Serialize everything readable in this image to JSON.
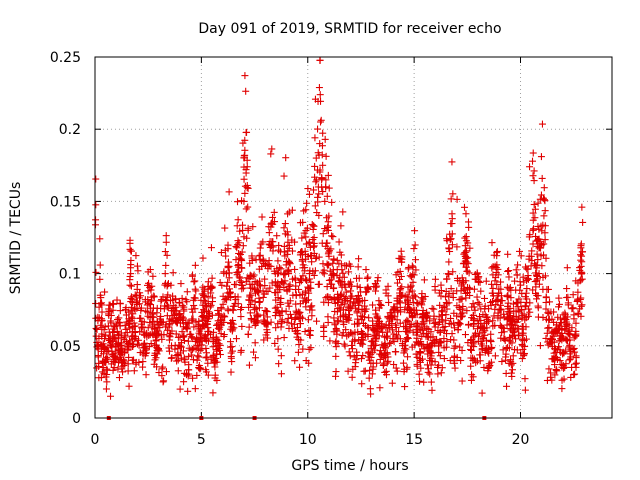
{
  "chart_data": {
    "type": "scatter",
    "title": "Day 091 of 2019, SRMTID for receiver echo",
    "xlabel": "GPS time / hours",
    "ylabel": "SRMTID / TECUs",
    "xlim": [
      0,
      24.3
    ],
    "ylim": [
      0,
      0.25
    ],
    "grid": true,
    "xticks": [
      0,
      5,
      10,
      15,
      20
    ],
    "yticks": [
      0,
      0.05,
      0.1,
      0.15,
      0.2,
      0.25
    ],
    "xtick_labels": [
      "0",
      "5",
      "10",
      "15",
      "20"
    ],
    "ytick_labels": [
      "0",
      "0.05",
      "0.1",
      "0.15",
      "0.2",
      "0.25"
    ],
    "marker": "+",
    "color": "#e00000",
    "series": [
      {
        "name": "SRMTID",
        "x": [
          0.05,
          0.15,
          0.25,
          0.35,
          0.45,
          0.55,
          0.65,
          0.75,
          0.85,
          0.95,
          1.05,
          1.15,
          1.25,
          1.35,
          1.45,
          1.55,
          1.65,
          1.75,
          1.85,
          1.95,
          2.1,
          2.3,
          2.5,
          2.7,
          2.9,
          3.1,
          3.3,
          3.5,
          3.7,
          3.9,
          4.1,
          4.3,
          4.5,
          4.7,
          4.9,
          5.1,
          5.3,
          5.5,
          5.7,
          5.9,
          6.1,
          6.3,
          6.5,
          6.7,
          6.9,
          7.0,
          7.1,
          7.2,
          7.3,
          7.5,
          7.7,
          7.9,
          8.1,
          8.3,
          8.5,
          8.7,
          8.9,
          9.1,
          9.3,
          9.5,
          9.7,
          9.9,
          10.1,
          10.3,
          10.5,
          10.6,
          10.7,
          10.8,
          10.9,
          11.0,
          11.2,
          11.4,
          11.6,
          11.8,
          12.0,
          12.2,
          12.4,
          12.6,
          12.8,
          13.0,
          13.2,
          13.4,
          13.6,
          13.8,
          14.0,
          14.2,
          14.4,
          14.6,
          14.8,
          15.0,
          15.2,
          15.4,
          15.6,
          15.8,
          16.0,
          16.2,
          16.4,
          16.6,
          16.8,
          17.0,
          17.2,
          17.4,
          17.6,
          17.8,
          18.0,
          18.2,
          18.4,
          18.6,
          18.8,
          19.0,
          19.2,
          19.4,
          19.6,
          19.8,
          20.0,
          20.2,
          20.4,
          20.6,
          20.8,
          21.0,
          21.2,
          21.4,
          21.6,
          21.8,
          22.0,
          22.2,
          22.4,
          22.6,
          22.8,
          22.9,
          0.3,
          0.9,
          1.6,
          2.4,
          3.2,
          4.0,
          4.8,
          5.6,
          6.4,
          7.2,
          8.0,
          8.8,
          9.6,
          10.4,
          10.65,
          10.75,
          11.3,
          12.1,
          12.9,
          13.7,
          14.5,
          15.3,
          16.1,
          16.9,
          17.7,
          18.5,
          19.3,
          20.1,
          20.9,
          21.1,
          21.7,
          22.5,
          22.85
        ],
        "y": [
          0.062,
          0.048,
          0.085,
          0.038,
          0.055,
          0.042,
          0.071,
          0.05,
          0.033,
          0.045,
          0.06,
          0.028,
          0.052,
          0.04,
          0.075,
          0.047,
          0.098,
          0.063,
          0.055,
          0.08,
          0.069,
          0.058,
          0.088,
          0.072,
          0.049,
          0.066,
          0.1,
          0.054,
          0.078,
          0.044,
          0.07,
          0.03,
          0.058,
          0.083,
          0.052,
          0.075,
          0.06,
          0.09,
          0.056,
          0.068,
          0.082,
          0.105,
          0.065,
          0.12,
          0.092,
          0.15,
          0.172,
          0.13,
          0.098,
          0.075,
          0.088,
          0.11,
          0.07,
          0.135,
          0.092,
          0.08,
          0.115,
          0.1,
          0.085,
          0.072,
          0.095,
          0.11,
          0.09,
          0.125,
          0.16,
          0.205,
          0.175,
          0.15,
          0.13,
          0.112,
          0.1,
          0.08,
          0.092,
          0.07,
          0.083,
          0.065,
          0.078,
          0.058,
          0.09,
          0.05,
          0.072,
          0.062,
          0.045,
          0.08,
          0.055,
          0.068,
          0.098,
          0.06,
          0.075,
          0.085,
          0.052,
          0.07,
          0.062,
          0.043,
          0.066,
          0.078,
          0.055,
          0.1,
          0.12,
          0.088,
          0.072,
          0.112,
          0.09,
          0.065,
          0.08,
          0.048,
          0.07,
          0.058,
          0.095,
          0.075,
          0.062,
          0.085,
          0.052,
          0.07,
          0.092,
          0.068,
          0.11,
          0.13,
          0.098,
          0.12,
          0.08,
          0.055,
          0.048,
          0.062,
          0.045,
          0.07,
          0.035,
          0.06,
          0.095,
          0.115,
          0.028,
          0.035,
          0.022,
          0.03,
          0.025,
          0.02,
          0.04,
          0.038,
          0.045,
          0.058,
          0.065,
          0.068,
          0.07,
          0.18,
          0.165,
          0.06,
          0.052,
          0.048,
          0.04,
          0.03,
          0.038,
          0.045,
          0.035,
          0.042,
          0.03,
          0.035,
          0.04,
          0.05,
          0.118,
          0.14,
          0.042,
          0.03,
          0.105
        ]
      }
    ],
    "zero_markers_x": [
      0.65,
      5.0,
      7.5,
      18.3
    ]
  }
}
